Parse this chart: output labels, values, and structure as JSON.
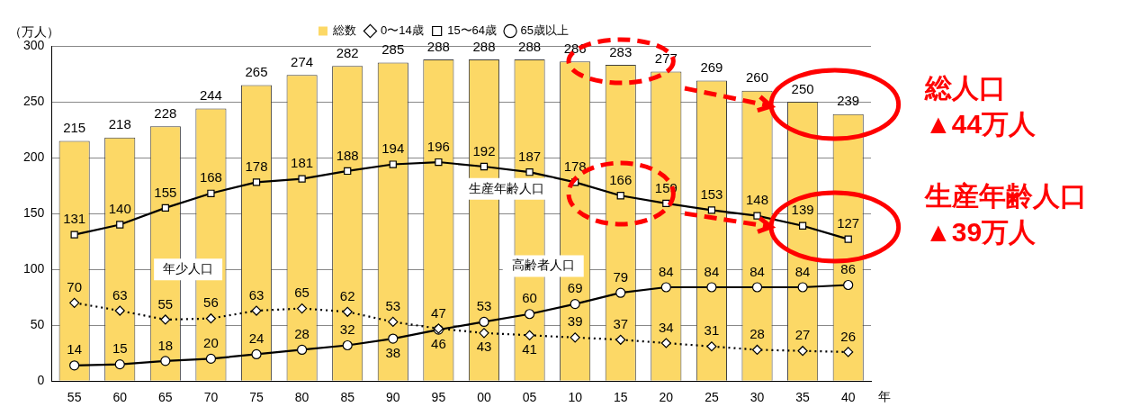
{
  "chart_data": {
    "type": "bar",
    "ylabel": "（万人）",
    "xlabel": "年",
    "categories": [
      "55",
      "60",
      "65",
      "70",
      "75",
      "80",
      "85",
      "90",
      "95",
      "00",
      "05",
      "10",
      "15",
      "20",
      "25",
      "30",
      "35",
      "40"
    ],
    "series": [
      {
        "name": "総数",
        "color": "#fcd866",
        "values": [
          215,
          218,
          228,
          244,
          265,
          274,
          282,
          285,
          288,
          288,
          288,
          286,
          283,
          277,
          269,
          260,
          250,
          239
        ]
      },
      {
        "name": "0〜14歳",
        "type": "line",
        "color": "#000000",
        "marker": "diamond",
        "line_style": "dotted",
        "values": [
          70,
          63,
          55,
          56,
          63,
          65,
          62,
          53,
          47,
          43,
          41,
          39,
          37,
          34,
          31,
          28,
          27,
          26
        ]
      },
      {
        "name": "15〜64歳",
        "type": "line",
        "color": "#000000",
        "marker": "square",
        "line_style": "solid",
        "values": [
          131,
          140,
          155,
          168,
          178,
          181,
          188,
          194,
          196,
          192,
          187,
          178,
          166,
          159,
          153,
          148,
          139,
          127
        ]
      },
      {
        "name": "65歳以上",
        "type": "line",
        "color": "#000000",
        "marker": "circle",
        "line_style": "solid",
        "values": [
          14,
          15,
          18,
          20,
          24,
          28,
          32,
          38,
          46,
          53,
          60,
          69,
          79,
          84,
          84,
          84,
          84,
          86
        ]
      }
    ],
    "ylim": [
      0,
      300
    ],
    "yticks": [
      0,
      50,
      100,
      150,
      200,
      250,
      300
    ],
    "grid": "y",
    "legend": "top",
    "data_labels": true,
    "annotations": [
      "生産年齢人口",
      "年少人口",
      "高齢者人口",
      "総人口\n▲44万人",
      "生産年齢人口\n▲39万人"
    ]
  }
}
